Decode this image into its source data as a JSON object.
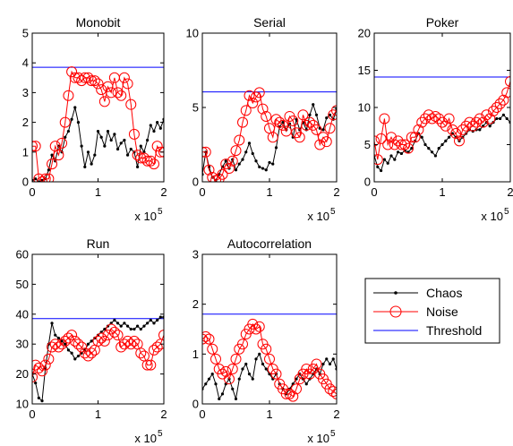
{
  "legend": {
    "entries": [
      "Chaos",
      "Noise",
      "Threshold"
    ],
    "colors": {
      "Chaos": "#000000",
      "Noise": "#ff0000",
      "Threshold": "#0000ff"
    },
    "placement": "bottom-right"
  },
  "chart_data": [
    {
      "type": "line",
      "title": "Monobit",
      "xlim": [
        0,
        200000
      ],
      "ylim": [
        0,
        5
      ],
      "xticks": [
        "0",
        "1",
        "2"
      ],
      "yticks": [
        "0",
        "1",
        "2",
        "3",
        "4",
        "5"
      ],
      "x_multiplier": "x 10",
      "x_exponent": "5",
      "threshold": 3.85,
      "series": [
        {
          "name": "Chaos",
          "x": [
            0,
            5000,
            10000,
            15000,
            20000,
            25000,
            30000,
            35000,
            40000,
            45000,
            50000,
            55000,
            60000,
            65000,
            70000,
            75000,
            80000,
            85000,
            90000,
            95000,
            100000,
            105000,
            110000,
            115000,
            120000,
            125000,
            130000,
            135000,
            140000,
            145000,
            150000,
            155000,
            160000,
            165000,
            170000,
            175000,
            180000,
            185000,
            190000,
            195000,
            200000
          ],
          "values": [
            0.05,
            0.1,
            0.0,
            0.05,
            0.1,
            0.4,
            0.9,
            0.7,
            1.2,
            1.0,
            1.5,
            1.7,
            2.1,
            2.5,
            2.0,
            1.2,
            0.5,
            1.0,
            0.6,
            0.9,
            1.7,
            1.5,
            1.2,
            1.7,
            1.4,
            1.6,
            1.1,
            1.3,
            1.4,
            0.9,
            1.1,
            1.0,
            0.5,
            1.2,
            1.0,
            1.4,
            1.9,
            1.7,
            2.0,
            1.8,
            2.1
          ]
        },
        {
          "name": "Noise",
          "x": [
            0,
            5000,
            10000,
            15000,
            20000,
            25000,
            30000,
            35000,
            40000,
            45000,
            50000,
            55000,
            60000,
            65000,
            70000,
            75000,
            80000,
            85000,
            90000,
            95000,
            100000,
            105000,
            110000,
            115000,
            120000,
            125000,
            130000,
            135000,
            140000,
            145000,
            150000,
            155000,
            160000,
            165000,
            170000,
            175000,
            180000,
            185000,
            190000,
            195000,
            200000
          ],
          "values": [
            1.2,
            1.2,
            0.1,
            0.0,
            0.1,
            0.1,
            0.6,
            1.2,
            0.9,
            1.3,
            2.0,
            2.9,
            3.7,
            3.5,
            3.5,
            3.4,
            3.5,
            3.5,
            3.4,
            3.4,
            3.3,
            3.1,
            2.7,
            3.2,
            3.0,
            3.5,
            3.0,
            2.9,
            3.5,
            3.3,
            2.6,
            1.6,
            0.9,
            0.8,
            0.8,
            0.7,
            0.7,
            0.6,
            1.2,
            1.0,
            1.0
          ]
        }
      ]
    },
    {
      "type": "line",
      "title": "Serial",
      "xlim": [
        0,
        200000
      ],
      "ylim": [
        0,
        10
      ],
      "xticks": [
        "0",
        "1",
        "2"
      ],
      "yticks": [
        "0",
        "5",
        "10"
      ],
      "x_multiplier": "x 10",
      "x_exponent": "5",
      "threshold": 6.05,
      "series": [
        {
          "name": "Chaos",
          "x": [
            0,
            5000,
            10000,
            15000,
            20000,
            25000,
            30000,
            35000,
            40000,
            45000,
            50000,
            55000,
            60000,
            65000,
            70000,
            75000,
            80000,
            85000,
            90000,
            95000,
            100000,
            105000,
            110000,
            115000,
            120000,
            125000,
            130000,
            135000,
            140000,
            145000,
            150000,
            155000,
            160000,
            165000,
            170000,
            175000,
            180000,
            185000,
            190000,
            195000,
            200000
          ],
          "values": [
            0.5,
            2.0,
            1.0,
            0.3,
            0.1,
            0.5,
            1.0,
            1.4,
            0.9,
            1.5,
            0.8,
            1.2,
            1.5,
            2.0,
            2.6,
            1.9,
            1.4,
            1.0,
            0.9,
            0.8,
            1.3,
            1.2,
            2.3,
            3.7,
            4.0,
            3.5,
            3.9,
            3.0,
            4.2,
            3.5,
            4.0,
            3.5,
            4.5,
            5.2,
            4.5,
            3.6,
            3.5,
            4.3,
            4.5,
            4.2,
            4.9
          ]
        },
        {
          "name": "Noise",
          "x": [
            0,
            5000,
            10000,
            15000,
            20000,
            25000,
            30000,
            35000,
            40000,
            45000,
            50000,
            55000,
            60000,
            65000,
            70000,
            75000,
            80000,
            85000,
            90000,
            95000,
            100000,
            105000,
            110000,
            115000,
            120000,
            125000,
            130000,
            135000,
            140000,
            145000,
            150000,
            155000,
            160000,
            165000,
            170000,
            175000,
            180000,
            185000,
            190000,
            195000,
            200000
          ],
          "values": [
            2.0,
            2.0,
            0.8,
            0.3,
            0.1,
            0.2,
            0.5,
            1.2,
            0.9,
            1.4,
            2.1,
            2.8,
            4.0,
            4.8,
            5.8,
            5.3,
            5.7,
            6.0,
            4.9,
            4.4,
            3.6,
            3.0,
            4.2,
            4.0,
            3.8,
            3.4,
            4.4,
            4.1,
            3.3,
            3.0,
            4.5,
            3.8,
            4.0,
            3.8,
            3.5,
            2.5,
            3.0,
            2.7,
            3.6,
            4.5,
            4.8
          ]
        }
      ]
    },
    {
      "type": "line",
      "title": "Poker",
      "xlim": [
        0,
        200000
      ],
      "ylim": [
        0,
        20
      ],
      "xticks": [
        "0",
        "1",
        "2"
      ],
      "yticks": [
        "0",
        "5",
        "10",
        "15",
        "20"
      ],
      "x_multiplier": "x 10",
      "x_exponent": "5",
      "threshold": 14.1,
      "series": [
        {
          "name": "Chaos",
          "x": [
            0,
            5000,
            10000,
            15000,
            20000,
            25000,
            30000,
            35000,
            40000,
            45000,
            50000,
            55000,
            60000,
            65000,
            70000,
            75000,
            80000,
            85000,
            90000,
            95000,
            100000,
            105000,
            110000,
            115000,
            120000,
            125000,
            130000,
            135000,
            140000,
            145000,
            150000,
            155000,
            160000,
            165000,
            170000,
            175000,
            180000,
            185000,
            190000,
            195000,
            200000
          ],
          "values": [
            3.5,
            2.0,
            1.5,
            3.0,
            2.5,
            3.5,
            3.0,
            4.0,
            3.8,
            4.2,
            4.0,
            4.5,
            5.5,
            6.5,
            6.0,
            5.0,
            4.5,
            4.0,
            3.5,
            4.5,
            5.0,
            5.5,
            6.0,
            6.5,
            6.0,
            5.5,
            6.0,
            6.5,
            7.0,
            6.8,
            7.0,
            7.0,
            7.5,
            8.0,
            7.5,
            8.0,
            8.5,
            8.5,
            9.0,
            8.5,
            8.0
          ]
        },
        {
          "name": "Noise",
          "x": [
            0,
            5000,
            10000,
            15000,
            20000,
            25000,
            30000,
            35000,
            40000,
            45000,
            50000,
            55000,
            60000,
            65000,
            70000,
            75000,
            80000,
            85000,
            90000,
            95000,
            100000,
            105000,
            110000,
            115000,
            120000,
            125000,
            130000,
            135000,
            140000,
            145000,
            150000,
            155000,
            160000,
            165000,
            170000,
            175000,
            180000,
            185000,
            190000,
            195000,
            200000
          ],
          "values": [
            5.5,
            3.0,
            5.8,
            8.5,
            5.0,
            6.0,
            5.0,
            5.5,
            5.0,
            5.0,
            4.5,
            6.0,
            6.0,
            7.0,
            8.0,
            8.5,
            9.0,
            8.5,
            8.8,
            8.5,
            8.0,
            7.5,
            8.5,
            7.0,
            6.5,
            5.5,
            7.0,
            7.5,
            8.0,
            7.5,
            8.0,
            8.5,
            8.0,
            9.0,
            8.5,
            9.5,
            10.0,
            10.5,
            11.0,
            12.0,
            13.5
          ]
        }
      ]
    },
    {
      "type": "line",
      "title": "Run",
      "xlim": [
        0,
        200000
      ],
      "ylim": [
        10,
        60
      ],
      "xticks": [
        "0",
        "1",
        "2"
      ],
      "yticks": [
        "10",
        "20",
        "30",
        "40",
        "50",
        "60"
      ],
      "x_multiplier": "x 10",
      "x_exponent": "5",
      "threshold": 38.5,
      "series": [
        {
          "name": "Chaos",
          "x": [
            0,
            5000,
            10000,
            15000,
            20000,
            25000,
            30000,
            35000,
            40000,
            45000,
            50000,
            55000,
            60000,
            65000,
            70000,
            75000,
            80000,
            85000,
            90000,
            95000,
            100000,
            105000,
            110000,
            115000,
            120000,
            125000,
            130000,
            135000,
            140000,
            145000,
            150000,
            155000,
            160000,
            165000,
            170000,
            175000,
            180000,
            185000,
            190000,
            195000,
            200000
          ],
          "values": [
            20,
            17,
            12,
            11,
            22,
            30,
            37,
            33,
            32,
            31,
            30,
            28,
            27,
            25,
            26,
            27,
            28,
            30,
            31,
            32,
            33,
            34,
            35,
            36,
            37,
            38,
            37,
            36,
            37,
            36,
            35,
            35,
            36,
            35,
            36,
            37,
            38,
            37,
            38,
            39,
            39
          ]
        },
        {
          "name": "Noise",
          "x": [
            0,
            5000,
            10000,
            15000,
            20000,
            25000,
            30000,
            35000,
            40000,
            45000,
            50000,
            55000,
            60000,
            65000,
            70000,
            75000,
            80000,
            85000,
            90000,
            95000,
            100000,
            105000,
            110000,
            115000,
            120000,
            125000,
            130000,
            135000,
            140000,
            145000,
            150000,
            155000,
            160000,
            165000,
            170000,
            175000,
            180000,
            185000,
            190000,
            195000,
            200000
          ],
          "values": [
            19,
            23,
            22,
            21,
            23,
            25,
            29,
            30,
            29,
            30,
            31,
            32,
            33,
            31,
            30,
            29,
            27,
            26,
            27,
            28,
            31,
            32,
            31,
            33,
            35,
            34,
            33,
            29,
            30,
            31,
            30,
            31,
            30,
            27,
            26,
            23,
            23,
            28,
            29,
            30,
            33
          ]
        }
      ]
    },
    {
      "type": "line",
      "title": "Autocorrelation",
      "xlim": [
        0,
        200000
      ],
      "ylim": [
        0,
        3
      ],
      "xticks": [
        "0",
        "1",
        "2"
      ],
      "yticks": [
        "0",
        "1",
        "2",
        "3"
      ],
      "x_multiplier": "x 10",
      "x_exponent": "5",
      "threshold": 1.8,
      "series": [
        {
          "name": "Chaos",
          "x": [
            0,
            5000,
            10000,
            15000,
            20000,
            25000,
            30000,
            35000,
            40000,
            45000,
            50000,
            55000,
            60000,
            65000,
            70000,
            75000,
            80000,
            85000,
            90000,
            95000,
            100000,
            105000,
            110000,
            115000,
            120000,
            125000,
            130000,
            135000,
            140000,
            145000,
            150000,
            155000,
            160000,
            165000,
            170000,
            175000,
            180000,
            185000,
            190000,
            195000,
            200000
          ],
          "values": [
            0.3,
            0.4,
            0.5,
            0.6,
            0.4,
            0.1,
            0.2,
            0.4,
            0.5,
            0.3,
            0.1,
            0.5,
            0.7,
            0.8,
            0.6,
            0.5,
            0.9,
            1.0,
            0.8,
            0.7,
            0.6,
            0.5,
            0.6,
            0.4,
            0.3,
            0.2,
            0.3,
            0.4,
            0.5,
            0.6,
            0.5,
            0.4,
            0.5,
            0.6,
            0.7,
            0.6,
            0.8,
            0.9,
            0.8,
            0.9,
            0.7
          ]
        },
        {
          "name": "Noise",
          "x": [
            0,
            5000,
            10000,
            15000,
            20000,
            25000,
            30000,
            35000,
            40000,
            45000,
            50000,
            55000,
            60000,
            65000,
            70000,
            75000,
            80000,
            85000,
            90000,
            95000,
            100000,
            105000,
            110000,
            115000,
            120000,
            125000,
            130000,
            135000,
            140000,
            145000,
            150000,
            155000,
            160000,
            165000,
            170000,
            175000,
            180000,
            185000,
            190000,
            195000,
            200000
          ],
          "values": [
            1.3,
            1.35,
            1.3,
            1.1,
            0.9,
            0.7,
            0.6,
            0.65,
            0.5,
            0.7,
            0.9,
            1.1,
            1.2,
            1.4,
            1.5,
            1.6,
            1.5,
            1.55,
            1.2,
            1.1,
            0.9,
            0.7,
            0.6,
            0.4,
            0.3,
            0.2,
            0.2,
            0.15,
            0.3,
            0.5,
            0.6,
            0.7,
            0.6,
            0.7,
            0.8,
            0.6,
            0.5,
            0.4,
            0.3,
            0.25,
            0.2
          ]
        }
      ]
    }
  ]
}
